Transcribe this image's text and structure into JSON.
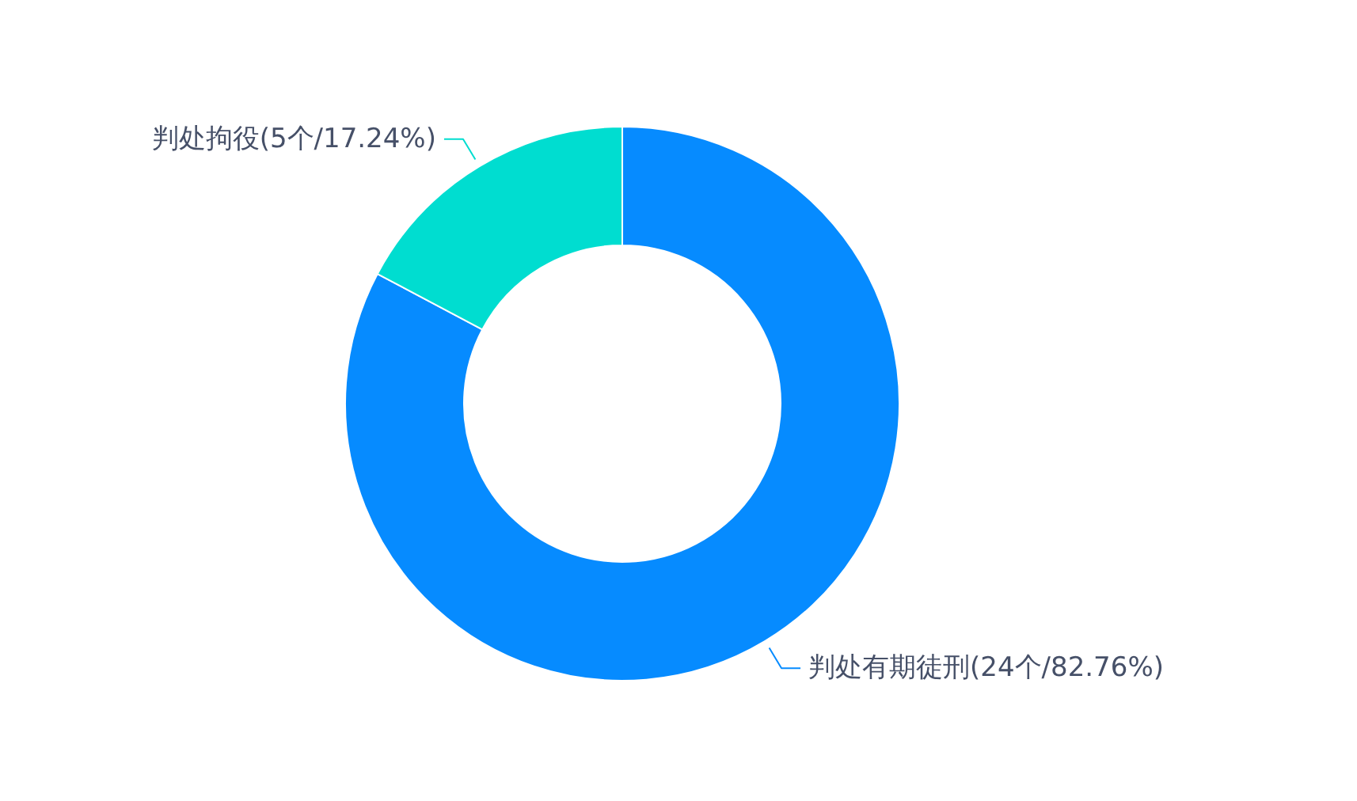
{
  "chart_data": {
    "type": "donut",
    "categories": [
      "判处有期徒刑",
      "判处拘役"
    ],
    "values": [
      24,
      5
    ],
    "value_labels": [
      "(24个/82.76%)",
      "(5个/17.24%)"
    ],
    "colors": [
      "#068bff",
      "#00ddd0"
    ]
  }
}
